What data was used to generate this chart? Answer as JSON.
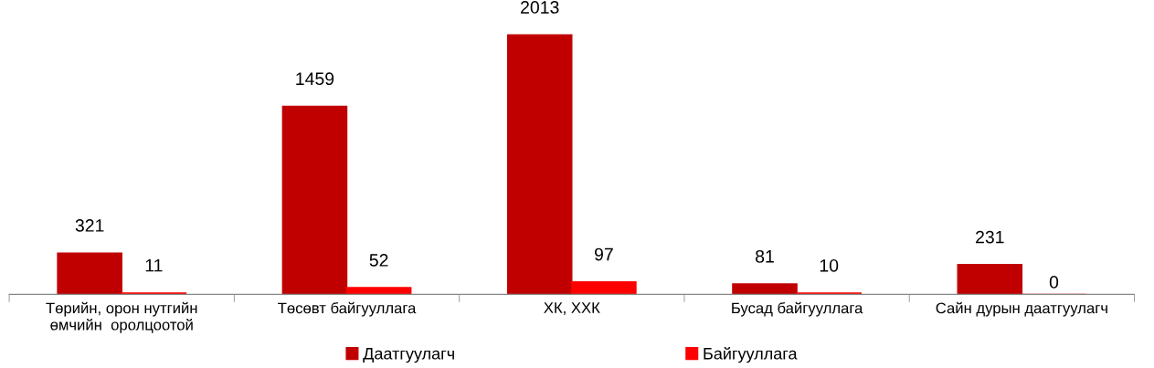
{
  "chart_data": {
    "type": "bar",
    "categories": [
      "Төрийн, орон нутгийн\nөмчийн  оролцоотой",
      "Төсөвт байгууллага",
      "ХК, ХХК",
      "Бусад байгууллага",
      "Сайн дурын даатгуулагч"
    ],
    "series": [
      {
        "name": "Даатгуулагч",
        "color": "#c00000",
        "values": [
          321,
          1459,
          2013,
          81,
          231
        ]
      },
      {
        "name": "Байгууллага",
        "color": "#ff0000",
        "values": [
          11,
          52,
          97,
          10,
          0
        ]
      }
    ],
    "data_labels": true,
    "grid": false,
    "legend": "bottom"
  }
}
